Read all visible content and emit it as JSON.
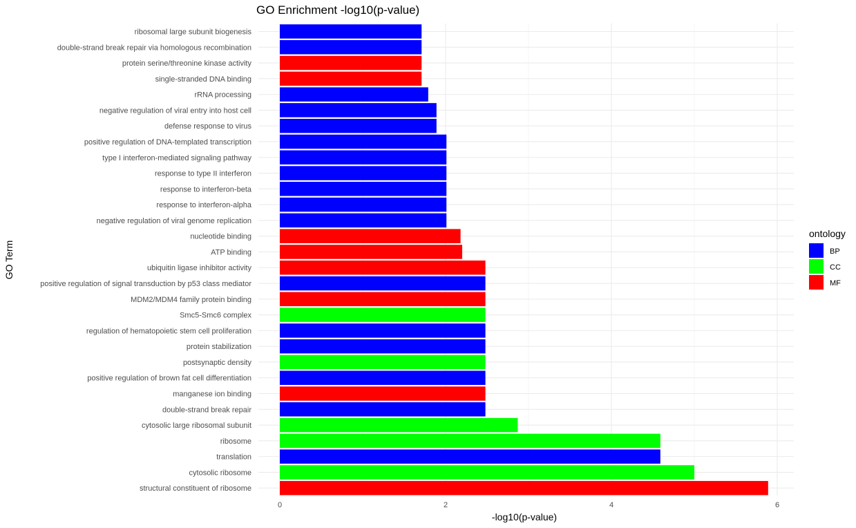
{
  "chart_data": {
    "type": "bar",
    "orientation": "horizontal",
    "title": "GO Enrichment -log10(p-value)",
    "xlabel": "-log10(p-value)",
    "ylabel": "GO Term",
    "xlim": [
      0,
      6
    ],
    "xticks": [
      0,
      2,
      4,
      6
    ],
    "grid": true,
    "legend": {
      "title": "ontology",
      "position": "right"
    },
    "colors": {
      "BP": "#0000FF",
      "CC": "#00FF00",
      "MF": "#FF0000"
    },
    "categories": [
      "ribosomal large subunit biogenesis",
      "double-strand break repair via homologous recombination",
      "protein serine/threonine kinase activity",
      "single-stranded DNA binding",
      "rRNA processing",
      "negative regulation of viral entry into host cell",
      "defense response to virus",
      "positive regulation of DNA-templated transcription",
      "type I interferon-mediated signaling pathway",
      "response to type II interferon",
      "response to interferon-beta",
      "response to interferon-alpha",
      "negative regulation of viral genome replication",
      "nucleotide binding",
      "ATP binding",
      "ubiquitin ligase inhibitor activity",
      "positive regulation of signal transduction by p53 class mediator",
      "MDM2/MDM4 family protein binding",
      "Smc5-Smc6 complex",
      "regulation of hematopoietic stem cell proliferation",
      "protein stabilization",
      "postsynaptic density",
      "positive regulation of brown fat cell differentiation",
      "manganese ion binding",
      "double-strand break repair",
      "cytosolic large ribosomal subunit",
      "ribosome",
      "translation",
      "cytosolic ribosome",
      "structural constituent of ribosome"
    ],
    "values": [
      1.71,
      1.71,
      1.71,
      1.71,
      1.79,
      1.89,
      1.89,
      2.01,
      2.01,
      2.01,
      2.01,
      2.01,
      2.01,
      2.18,
      2.2,
      2.48,
      2.48,
      2.48,
      2.48,
      2.48,
      2.48,
      2.48,
      2.48,
      2.48,
      2.48,
      2.87,
      4.59,
      4.59,
      5.0,
      5.89
    ],
    "ontology": [
      "BP",
      "BP",
      "MF",
      "MF",
      "BP",
      "BP",
      "BP",
      "BP",
      "BP",
      "BP",
      "BP",
      "BP",
      "BP",
      "MF",
      "MF",
      "MF",
      "BP",
      "MF",
      "CC",
      "BP",
      "BP",
      "CC",
      "BP",
      "MF",
      "BP",
      "CC",
      "CC",
      "BP",
      "CC",
      "MF"
    ]
  }
}
